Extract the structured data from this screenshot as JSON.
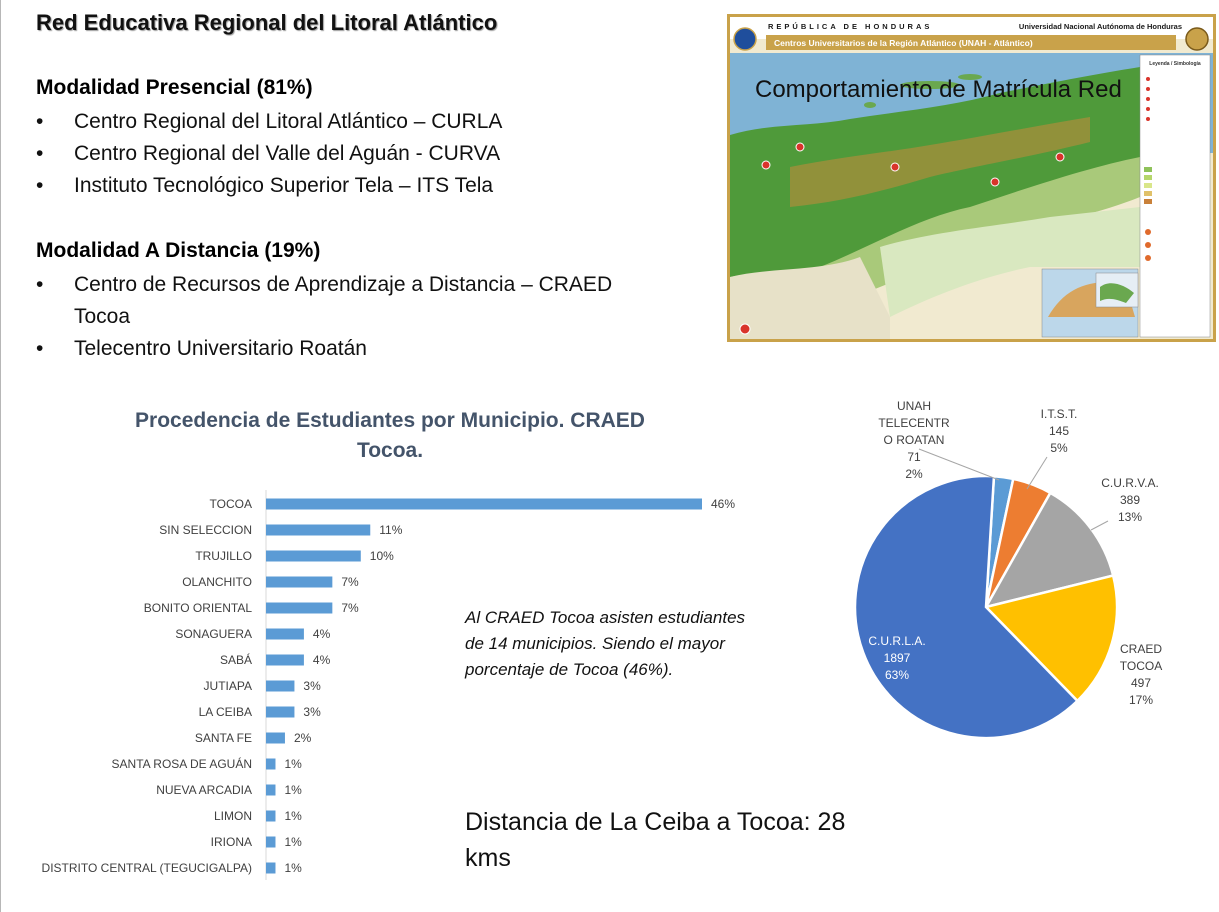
{
  "slide_title": "Red Educativa Regional del Litoral Atlántico",
  "presencial": {
    "heading": "Modalidad Presencial  (81%)",
    "items": [
      "Centro Regional del Litoral Atlántico – CURLA",
      "Centro Regional del Valle del Aguán  - CURVA",
      "Instituto Tecnológico Superior Tela – ITS Tela"
    ]
  },
  "distancia": {
    "heading": "Modalidad A Distancia (19%)",
    "items": [
      "Centro de Recursos de Aprendizaje a Distancia – CRAED Tocoa",
      "Telecentro Universitario Roatán"
    ]
  },
  "map": {
    "header_left": "REPÚBLICA DE HONDURAS",
    "header_right": "Universidad Nacional Autónoma de Honduras",
    "banner": "Centros Universitarios de la Región Atlántico (UNAH - Atlántico)",
    "legend_title": "Leyenda / Simbología",
    "caption": "Comportamiento de Matrícula Red"
  },
  "note": "Al CRAED Tocoa asisten estudiantes de 14 municipios. Siendo el mayor porcentaje de Tocoa (46%).",
  "distance_text": "Distancia de La Ceiba a Tocoa: 28 kms",
  "chart_data": [
    {
      "type": "bar",
      "orientation": "horizontal",
      "title": "Procedencia de Estudiantes por Municipio. CRAED Tocoa.",
      "categories": [
        "TOCOA",
        "SIN SELECCION",
        "TRUJILLO",
        "OLANCHITO",
        "BONITO ORIENTAL",
        "SONAGUERA",
        "SABÁ",
        "JUTIAPA",
        "LA CEIBA",
        "SANTA FE",
        "SANTA ROSA DE AGUÁN",
        "NUEVA ARCADIA",
        "LIMON",
        "IRIONA",
        "DISTRITO CENTRAL (TEGUCIGALPA)"
      ],
      "values": [
        46,
        11,
        10,
        7,
        7,
        4,
        4,
        3,
        3,
        2,
        1,
        1,
        1,
        1,
        1
      ],
      "value_labels": [
        "46%",
        "11%",
        "10%",
        "7%",
        "7%",
        "4%",
        "4%",
        "3%",
        "3%",
        "2%",
        "1%",
        "1%",
        "1%",
        "1%",
        "1%"
      ],
      "xlim": [
        0,
        46
      ],
      "color": "#5b9bd5",
      "grid": false
    },
    {
      "type": "pie",
      "slices": [
        {
          "label": "UNAH TELECENTRO ROATAN",
          "label_lines": [
            "UNAH",
            "TELECENTR",
            "O ROATAN"
          ],
          "value": 71,
          "percent": "2%",
          "color": "#5b9bd5"
        },
        {
          "label": "I.T.S.T.",
          "label_lines": [
            "I.T.S.T."
          ],
          "value": 145,
          "percent": "5%",
          "color": "#ed7d31"
        },
        {
          "label": "C.U.R.V.A.",
          "label_lines": [
            "C.U.R.V.A."
          ],
          "value": 389,
          "percent": "13%",
          "color": "#a5a5a5"
        },
        {
          "label": "CRAED TOCOA",
          "label_lines": [
            "CRAED",
            "TOCOA"
          ],
          "value": 497,
          "percent": "17%",
          "color": "#ffc000"
        },
        {
          "label": "C.U.R.L.A.",
          "label_lines": [
            "C.U.R.L.A."
          ],
          "value": 1897,
          "percent": "63%",
          "color": "#4472c4"
        }
      ]
    }
  ]
}
